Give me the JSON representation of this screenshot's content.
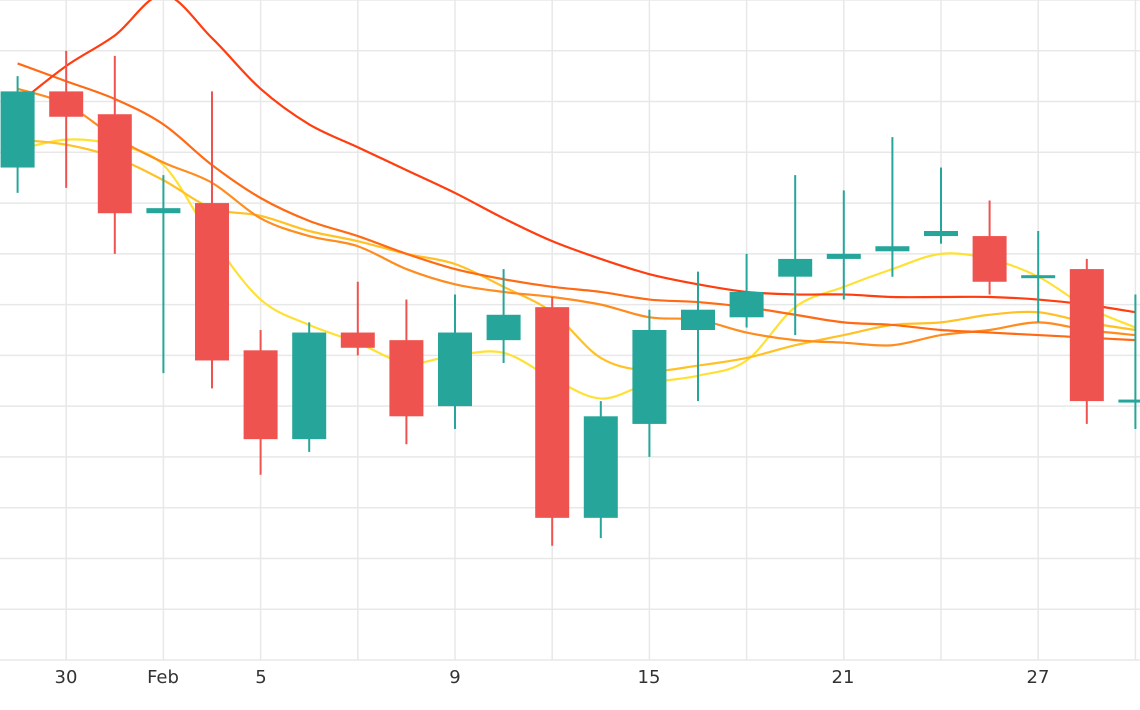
{
  "chart_data": {
    "type": "candlestick",
    "title": "",
    "xlabel": "",
    "ylabel": "",
    "grid": true,
    "legend": "none",
    "x_tick_labels": [
      "30",
      "Feb",
      "5",
      "9",
      "15",
      "21",
      "27"
    ],
    "ylim": [
      0,
      130
    ],
    "candles": [
      {
        "open": 97.0,
        "close": 112.0,
        "high": 115.0,
        "low": 92.0
      },
      {
        "open": 112.0,
        "close": 107.0,
        "high": 120.0,
        "low": 93.0
      },
      {
        "open": 107.5,
        "close": 88.0,
        "high": 119.0,
        "low": 80.0
      },
      {
        "open": 88.0,
        "close": 89.0,
        "high": 95.5,
        "low": 56.5
      },
      {
        "open": 90.0,
        "close": 59.0,
        "high": 112.0,
        "low": 53.5
      },
      {
        "open": 61.0,
        "close": 43.5,
        "high": 65.0,
        "low": 36.5
      },
      {
        "open": 43.5,
        "close": 64.5,
        "high": 66.5,
        "low": 41.0
      },
      {
        "open": 64.5,
        "close": 61.5,
        "high": 74.5,
        "low": 60.0
      },
      {
        "open": 63.0,
        "close": 48.0,
        "high": 71.0,
        "low": 42.5
      },
      {
        "open": 50.0,
        "close": 64.5,
        "high": 72.0,
        "low": 45.5
      },
      {
        "open": 63.0,
        "close": 68.0,
        "high": 77.0,
        "low": 58.5
      },
      {
        "open": 69.5,
        "close": 28.0,
        "high": 71.5,
        "low": 22.5
      },
      {
        "open": 28.0,
        "close": 48.0,
        "high": 51.0,
        "low": 24.0
      },
      {
        "open": 46.5,
        "close": 65.0,
        "high": 69.0,
        "low": 40.0
      },
      {
        "open": 65.0,
        "close": 69.0,
        "high": 76.5,
        "low": 51.0
      },
      {
        "open": 67.5,
        "close": 72.5,
        "high": 80.0,
        "low": 65.5
      },
      {
        "open": 75.5,
        "close": 79.0,
        "high": 95.5,
        "low": 64.0
      },
      {
        "open": 79.0,
        "close": 80.0,
        "high": 92.5,
        "low": 71.0
      },
      {
        "open": 80.5,
        "close": 81.5,
        "high": 103.0,
        "low": 75.5
      },
      {
        "open": 83.5,
        "close": 84.5,
        "high": 97.0,
        "low": 82.0
      },
      {
        "open": 83.5,
        "close": 74.5,
        "high": 90.5,
        "low": 72.0
      },
      {
        "open": 75.5,
        "close": 75.5,
        "high": 84.5,
        "low": 66.5
      },
      {
        "open": 77.0,
        "close": 51.0,
        "high": 79.0,
        "low": 46.5
      },
      {
        "open": 51.0,
        "close": 51.0,
        "high": 72.0,
        "low": 45.5
      }
    ],
    "moving_averages": [
      {
        "color": "#ffe135",
        "values": [
          100.5,
          102.5,
          101.5,
          97.5,
          83.0,
          71.0,
          66.0,
          62.5,
          58.5,
          60.0,
          60.5,
          55.5,
          51.5,
          54.5,
          56.0,
          59.0,
          69.5,
          73.5,
          77.0,
          80.0,
          79.0,
          75.5,
          69.5,
          65.5
        ]
      },
      {
        "color": "#ffc125",
        "values": [
          102.5,
          101.5,
          99.0,
          94.5,
          89.0,
          87.5,
          84.5,
          82.5,
          80.0,
          78.0,
          73.5,
          68.5,
          59.5,
          57.0,
          58.0,
          59.5,
          62.0,
          64.0,
          66.0,
          66.5,
          68.0,
          68.5,
          66.5,
          65.0
        ]
      },
      {
        "color": "#ff8c1f",
        "values": [
          112.5,
          109.5,
          103.0,
          98.0,
          94.0,
          87.0,
          83.5,
          81.5,
          77.0,
          74.0,
          72.5,
          71.5,
          70.0,
          67.5,
          67.0,
          64.5,
          63.0,
          62.5,
          62.0,
          64.0,
          65.0,
          66.5,
          65.0,
          64.0
        ]
      },
      {
        "color": "#ff6a14",
        "values": [
          117.5,
          114.0,
          110.5,
          105.5,
          97.5,
          91.0,
          86.5,
          83.5,
          80.0,
          77.0,
          75.0,
          73.5,
          72.5,
          71.0,
          70.5,
          69.5,
          68.0,
          66.5,
          66.0,
          65.0,
          64.5,
          64.0,
          63.5,
          63.0
        ]
      },
      {
        "color": "#ff3d0f",
        "values": [
          109.5,
          117.0,
          123.0,
          131.0,
          122.5,
          112.5,
          105.5,
          101.0,
          96.5,
          92.0,
          87.0,
          82.5,
          79.0,
          76.0,
          74.0,
          72.5,
          72.0,
          72.0,
          71.5,
          71.5,
          71.5,
          71.0,
          70.0,
          68.5
        ]
      }
    ],
    "colors": {
      "up": "#26a69a",
      "down": "#ef5350",
      "grid": "#e8e8e8",
      "axis_text": "#333333"
    }
  }
}
